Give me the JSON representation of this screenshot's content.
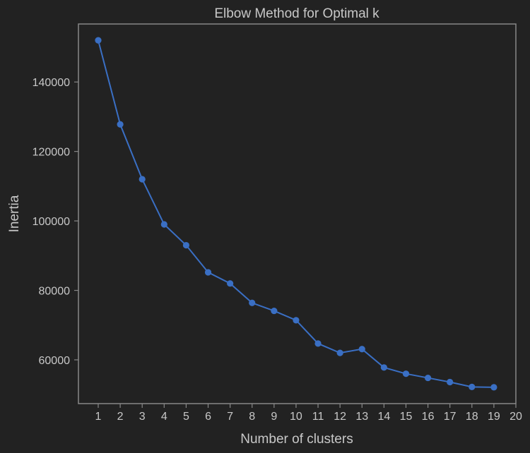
{
  "chart_data": {
    "type": "line",
    "title": "Elbow Method for Optimal k",
    "xlabel": "Number of clusters",
    "ylabel": "Inertia",
    "x": [
      1,
      2,
      3,
      4,
      5,
      6,
      7,
      8,
      9,
      10,
      11,
      12,
      13,
      14,
      15,
      16,
      17,
      18,
      19
    ],
    "y": [
      152000,
      127800,
      112000,
      99000,
      93000,
      85200,
      82000,
      76400,
      74100,
      71400,
      64700,
      62000,
      63100,
      57800,
      56000,
      54800,
      53600,
      52200,
      52100
    ],
    "xticks": [
      "1",
      "2",
      "3",
      "4",
      "5",
      "6",
      "7",
      "8",
      "9",
      "10",
      "11",
      "12",
      "13",
      "14",
      "15",
      "16",
      "17",
      "18",
      "19",
      "20"
    ],
    "yticks": [
      "60000",
      "80000",
      "100000",
      "120000",
      "140000"
    ],
    "xlim": [
      0.1,
      20
    ],
    "ylim": [
      47400,
      156700
    ],
    "grid": false,
    "legend": "none",
    "colors": {
      "line": "#3a6fc4",
      "background": "#222222",
      "axes": "#888888",
      "text": "#c8c8c8"
    }
  }
}
